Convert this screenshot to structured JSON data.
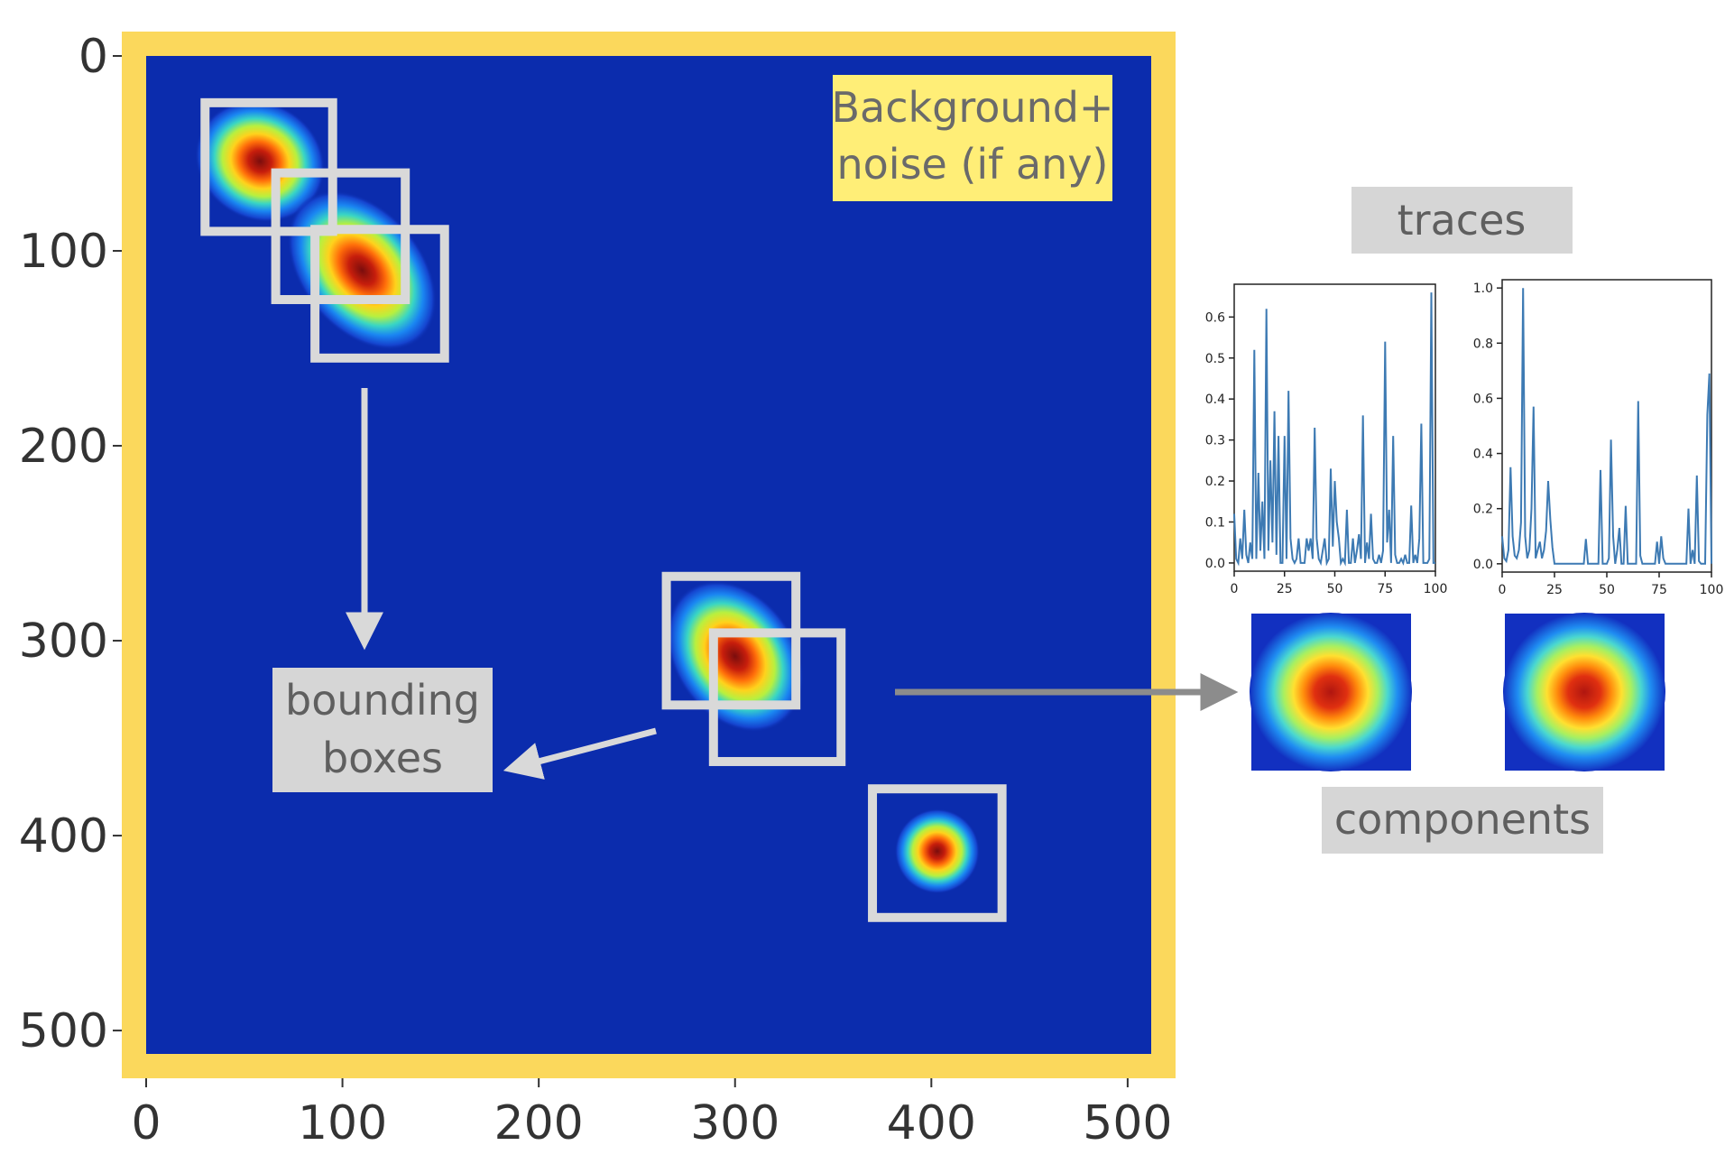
{
  "main_image": {
    "x_ticks": [
      "0",
      "100",
      "200",
      "300",
      "400",
      "500"
    ],
    "y_ticks": [
      "0",
      "100",
      "200",
      "300",
      "400",
      "500"
    ],
    "x_range": [
      0,
      512
    ],
    "y_range": [
      0,
      512
    ],
    "frame_color": "#fbd85c",
    "background_color": "#0b2cad",
    "bounding_boxes": [
      {
        "x0": 30,
        "y0": 24,
        "x1": 95,
        "y1": 90
      },
      {
        "x0": 66,
        "y0": 60,
        "x1": 132,
        "y1": 125
      },
      {
        "x0": 86,
        "y0": 89,
        "x1": 152,
        "y1": 155
      },
      {
        "x0": 265,
        "y0": 267,
        "x1": 331,
        "y1": 333
      },
      {
        "x0": 289,
        "y0": 296,
        "x1": 354,
        "y1": 362
      },
      {
        "x0": 370,
        "y0": 376,
        "x1": 436,
        "y1": 442
      }
    ],
    "blobs": [
      {
        "cx": 58,
        "cy": 54,
        "rx": 34,
        "ry": 30,
        "rot": 30,
        "peak": 1.0
      },
      {
        "cx": 110,
        "cy": 110,
        "rx": 42,
        "ry": 28,
        "rot": 50,
        "peak": 1.1
      },
      {
        "cx": 300,
        "cy": 308,
        "rx": 38,
        "ry": 28,
        "rot": 55,
        "peak": 1.1
      },
      {
        "cx": 403,
        "cy": 408,
        "rx": 24,
        "ry": 24,
        "rot": 0,
        "peak": 0.9
      }
    ]
  },
  "labels": {
    "background_line1": "Background+",
    "background_line2": "noise (if any)",
    "bounding_line1": "bounding",
    "bounding_line2": "boxes",
    "traces": "traces",
    "components": "components"
  },
  "colors": {
    "label_yellow": "#ffee77",
    "label_gray": "#d6d6d6",
    "label_text": "#5f5f5f",
    "arrow": "#d9d9d9",
    "arrow_dark": "#8c8c8c",
    "trace_line": "#3d7ab3"
  },
  "chart_data": [
    {
      "type": "line",
      "title": "",
      "xlabel": "",
      "ylabel": "",
      "xlim": [
        0,
        100
      ],
      "ylim": [
        -0.02,
        0.68
      ],
      "x_ticks": [
        "0",
        "25",
        "50",
        "75",
        "100"
      ],
      "y_ticks": [
        "0.0",
        "0.1",
        "0.2",
        "0.3",
        "0.4",
        "0.5",
        "0.6"
      ],
      "y_tick_values": [
        0,
        0.1,
        0.2,
        0.3,
        0.4,
        0.5,
        0.6
      ],
      "x": [
        0,
        1,
        2,
        3,
        4,
        5,
        6,
        7,
        8,
        9,
        10,
        11,
        12,
        13,
        14,
        15,
        16,
        17,
        18,
        19,
        20,
        21,
        22,
        23,
        24,
        25,
        26,
        27,
        28,
        29,
        30,
        31,
        32,
        33,
        34,
        35,
        36,
        37,
        38,
        39,
        40,
        41,
        42,
        43,
        44,
        45,
        46,
        47,
        48,
        49,
        50,
        51,
        52,
        53,
        54,
        55,
        56,
        57,
        58,
        59,
        60,
        61,
        62,
        63,
        64,
        65,
        66,
        67,
        68,
        69,
        70,
        71,
        72,
        73,
        74,
        75,
        76,
        77,
        78,
        79,
        80,
        81,
        82,
        83,
        84,
        85,
        86,
        87,
        88,
        89,
        90,
        91,
        92,
        93,
        94,
        95,
        96,
        97,
        98,
        99,
        100
      ],
      "values": [
        0.12,
        0.01,
        0.0,
        0.06,
        0.01,
        0.13,
        0.02,
        0.0,
        0.05,
        0.01,
        0.52,
        0.01,
        0.22,
        0.03,
        0.15,
        0.01,
        0.62,
        0.03,
        0.25,
        0.05,
        0.37,
        0.02,
        0.31,
        0.0,
        0.0,
        0.31,
        0.01,
        0.42,
        0.06,
        0.01,
        0.0,
        0.01,
        0.06,
        0.0,
        0.0,
        0.0,
        0.06,
        0.03,
        0.06,
        0.01,
        0.33,
        0.06,
        0.01,
        0.0,
        0.03,
        0.06,
        0.0,
        0.01,
        0.23,
        0.04,
        0.2,
        0.1,
        0.06,
        0.0,
        0.01,
        0.0,
        0.13,
        0.0,
        0.0,
        0.06,
        0.0,
        0.03,
        0.07,
        0.01,
        0.36,
        0.0,
        0.05,
        0.01,
        0.12,
        0.01,
        0.0,
        0.0,
        0.02,
        0.0,
        0.03,
        0.54,
        0.05,
        0.13,
        0.0,
        0.31,
        0.02,
        0.0,
        0.0,
        0.01,
        0.0,
        0.02,
        0.0,
        0.0,
        0.14,
        0.0,
        0.02,
        0.0,
        0.06,
        0.34,
        0.0,
        0.0,
        0.0,
        0.01,
        0.66,
        0.0,
        0.0
      ]
    },
    {
      "type": "line",
      "title": "",
      "xlabel": "",
      "ylabel": "",
      "xlim": [
        0,
        100
      ],
      "ylim": [
        -0.03,
        1.03
      ],
      "x_ticks": [
        "0",
        "25",
        "50",
        "75",
        "100"
      ],
      "y_ticks": [
        "0.0",
        "0.2",
        "0.4",
        "0.6",
        "0.8",
        "1.0"
      ],
      "y_tick_values": [
        0,
        0.2,
        0.4,
        0.6,
        0.8,
        1.0
      ],
      "x": [
        0,
        1,
        2,
        3,
        4,
        5,
        6,
        7,
        8,
        9,
        10,
        11,
        12,
        13,
        14,
        15,
        16,
        17,
        18,
        19,
        20,
        21,
        22,
        23,
        24,
        25,
        26,
        27,
        28,
        29,
        30,
        31,
        32,
        33,
        34,
        35,
        36,
        37,
        38,
        39,
        40,
        41,
        42,
        43,
        44,
        45,
        46,
        47,
        48,
        49,
        50,
        51,
        52,
        53,
        54,
        55,
        56,
        57,
        58,
        59,
        60,
        61,
        62,
        63,
        64,
        65,
        66,
        67,
        68,
        69,
        70,
        71,
        72,
        73,
        74,
        75,
        76,
        77,
        78,
        79,
        80,
        81,
        82,
        83,
        84,
        85,
        86,
        87,
        88,
        89,
        90,
        91,
        92,
        93,
        94,
        95,
        96,
        97,
        98,
        99,
        100
      ],
      "values": [
        0.1,
        0.02,
        0.01,
        0.05,
        0.35,
        0.1,
        0.03,
        0.02,
        0.05,
        0.15,
        1.0,
        0.1,
        0.02,
        0.05,
        0.2,
        0.57,
        0.02,
        0.05,
        0.08,
        0.02,
        0.05,
        0.12,
        0.3,
        0.16,
        0.06,
        0.0,
        0.0,
        0.0,
        0.0,
        0.0,
        0.0,
        0.0,
        0.0,
        0.0,
        0.0,
        0.0,
        0.0,
        0.0,
        0.0,
        0.0,
        0.09,
        0.0,
        0.0,
        0.0,
        0.0,
        0.0,
        0.0,
        0.34,
        0.0,
        0.0,
        0.0,
        0.02,
        0.45,
        0.1,
        0.0,
        0.05,
        0.13,
        0.0,
        0.0,
        0.21,
        0.0,
        0.0,
        0.0,
        0.0,
        0.0,
        0.59,
        0.03,
        0.0,
        0.0,
        0.0,
        0.0,
        0.0,
        0.0,
        0.0,
        0.08,
        0.0,
        0.1,
        0.02,
        0.0,
        0.0,
        0.0,
        0.0,
        0.0,
        0.0,
        0.0,
        0.0,
        0.0,
        0.0,
        0.0,
        0.2,
        0.0,
        0.05,
        0.0,
        0.32,
        0.01,
        0.0,
        0.0,
        0.0,
        0.54,
        0.69,
        0.0
      ]
    }
  ]
}
